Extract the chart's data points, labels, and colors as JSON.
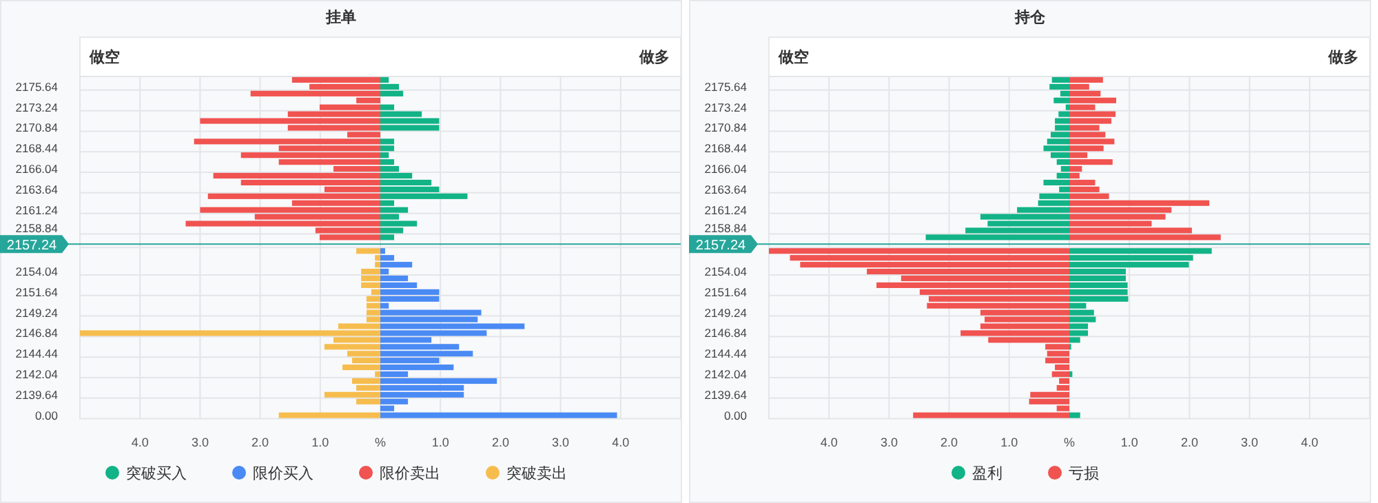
{
  "chart_data": [
    {
      "type": "bar",
      "orientation": "horizontal",
      "stacked": true,
      "title": "挂单",
      "annotations": [
        "做空",
        "做多"
      ],
      "categories": [
        null,
        "2175.64",
        null,
        null,
        "2173.24",
        null,
        null,
        "2170.84",
        null,
        null,
        "2168.44",
        null,
        null,
        "2166.04",
        null,
        null,
        "2163.64",
        null,
        null,
        "2161.24",
        null,
        null,
        "2158.84",
        null,
        "2157.24",
        null,
        null,
        null,
        "2154.04",
        null,
        null,
        "2151.64",
        null,
        null,
        "2149.24",
        null,
        null,
        "2146.84",
        null,
        null,
        "2144.44",
        null,
        null,
        "2142.04",
        null,
        null,
        "2139.64",
        null,
        null,
        "0.00"
      ],
      "series": [
        {
          "name": "突破买入",
          "color": "#12b386",
          "values": [
            0.14,
            0.31,
            0.38,
            null,
            0.23,
            0.69,
            0.98,
            0.98,
            null,
            0.23,
            0.23,
            0.14,
            0.23,
            0.31,
            0.53,
            0.85,
            0.98,
            1.45,
            0.23,
            0.46,
            0.31,
            0.61,
            0.38,
            0.23,
            null,
            null,
            null,
            null,
            null,
            null,
            null,
            null,
            null,
            null,
            null,
            null,
            null,
            null,
            null,
            null,
            null,
            null,
            null,
            null,
            null,
            null,
            null,
            null,
            null,
            null
          ]
        },
        {
          "name": "限价买入",
          "color": "#4a8af4",
          "values": [
            null,
            null,
            null,
            null,
            null,
            null,
            null,
            null,
            null,
            null,
            null,
            null,
            null,
            null,
            null,
            null,
            null,
            null,
            null,
            null,
            null,
            null,
            null,
            null,
            null,
            0.08,
            0.23,
            0.53,
            0.14,
            0.46,
            0.61,
            0.98,
            0.98,
            0.14,
            1.68,
            1.62,
            2.4,
            1.77,
            0.85,
            1.31,
            1.54,
            0.98,
            1.22,
            0.46,
            1.94,
            1.39,
            1.39,
            0.46,
            0.23,
            3.94
          ]
        },
        {
          "name": "限价卖出",
          "color": "#f05350",
          "values": [
            -1.47,
            -1.18,
            -2.16,
            -0.4,
            -1.01,
            -1.54,
            -3.0,
            -1.54,
            -0.55,
            -3.1,
            -1.69,
            -2.32,
            -1.69,
            -0.78,
            -2.78,
            -2.32,
            -0.93,
            -2.87,
            -1.47,
            -3.0,
            -2.09,
            -3.24,
            -1.08,
            -1.01,
            null,
            null,
            null,
            null,
            null,
            null,
            null,
            null,
            null,
            null,
            null,
            null,
            null,
            null,
            null,
            null,
            null,
            null,
            null,
            null,
            null,
            null,
            null,
            null,
            null,
            null
          ]
        },
        {
          "name": "突破卖出",
          "color": "#f6bd4e",
          "values": [
            null,
            null,
            null,
            null,
            null,
            null,
            null,
            null,
            null,
            null,
            null,
            null,
            null,
            null,
            null,
            null,
            null,
            null,
            null,
            null,
            null,
            null,
            null,
            null,
            null,
            -0.4,
            -0.09,
            -0.09,
            -0.32,
            -0.32,
            -0.32,
            -0.15,
            -0.23,
            -0.23,
            -0.23,
            -0.23,
            -0.7,
            -5.0,
            -0.78,
            -0.93,
            -0.55,
            -0.47,
            -0.63,
            -0.09,
            -0.47,
            -0.4,
            -0.93,
            -0.4,
            null,
            -1.69
          ]
        }
      ],
      "xlim": [
        -5,
        5
      ],
      "xticks": [
        {
          "value": -4,
          "label": "4.0"
        },
        {
          "value": -3,
          "label": "3.0"
        },
        {
          "value": -2,
          "label": "2.0"
        },
        {
          "value": -1,
          "label": "1.0"
        },
        {
          "value": 0,
          "label": "%"
        },
        {
          "value": 1,
          "label": "1.0"
        },
        {
          "value": 2,
          "label": "2.0"
        },
        {
          "value": 3,
          "label": "3.0"
        },
        {
          "value": 4,
          "label": "4.0"
        }
      ],
      "ref_lines": [
        {
          "axis": "y",
          "value": "2157.24",
          "color": "#26a69a"
        }
      ],
      "grid": true,
      "legend": "bottom"
    },
    {
      "type": "bar",
      "orientation": "horizontal",
      "stacked": true,
      "title": "持仓",
      "annotations": [
        "做空",
        "做多"
      ],
      "categories": [
        null,
        "2175.64",
        null,
        null,
        "2173.24",
        null,
        null,
        "2170.84",
        null,
        null,
        "2168.44",
        null,
        null,
        "2166.04",
        null,
        null,
        "2163.64",
        null,
        null,
        "2161.24",
        null,
        null,
        "2158.84",
        null,
        "2157.24",
        null,
        null,
        null,
        "2154.04",
        null,
        null,
        "2151.64",
        null,
        null,
        "2149.24",
        null,
        null,
        "2146.84",
        null,
        null,
        "2144.44",
        null,
        null,
        "2142.04",
        null,
        null,
        "2139.64",
        null,
        null,
        "0.00"
      ],
      "series": [
        {
          "name": "盈利",
          "color": "#12b386",
          "values": [
            -0.29,
            -0.33,
            -0.15,
            -0.26,
            -0.06,
            -0.18,
            -0.24,
            -0.24,
            -0.31,
            -0.37,
            -0.43,
            -0.31,
            -0.21,
            -0.14,
            -0.21,
            -0.43,
            -0.17,
            -0.5,
            -0.52,
            -0.87,
            -1.48,
            -1.36,
            -1.73,
            -2.39,
            null,
            2.37,
            2.06,
            1.99,
            0.94,
            0.94,
            0.97,
            0.97,
            0.98,
            0.28,
            0.41,
            0.44,
            0.31,
            0.31,
            0.18,
            0.03,
            null,
            null,
            null,
            0.05,
            null,
            null,
            null,
            null,
            null,
            0.18
          ]
        },
        {
          "name": "亏损",
          "color": "#f05350",
          "values": [
            0.56,
            0.33,
            0.52,
            0.78,
            0.43,
            0.77,
            0.7,
            0.5,
            0.6,
            0.75,
            0.57,
            0.3,
            0.72,
            0.21,
            0.17,
            0.43,
            0.5,
            0.66,
            2.33,
            1.7,
            1.6,
            1.37,
            2.04,
            2.52,
            null,
            -5.0,
            -4.65,
            -4.48,
            -3.37,
            -2.8,
            -3.21,
            -2.49,
            -2.34,
            -2.37,
            -1.48,
            -1.41,
            -1.48,
            -1.81,
            -1.35,
            -0.4,
            -0.37,
            -0.4,
            -0.24,
            -0.29,
            -0.17,
            -0.21,
            -0.65,
            -0.67,
            -0.21,
            -2.6
          ]
        }
      ],
      "xlim": [
        -5,
        5
      ],
      "xticks": [
        {
          "value": -4,
          "label": "4.0"
        },
        {
          "value": -3,
          "label": "3.0"
        },
        {
          "value": -2,
          "label": "2.0"
        },
        {
          "value": -1,
          "label": "1.0"
        },
        {
          "value": 0,
          "label": "%"
        },
        {
          "value": 1,
          "label": "1.0"
        },
        {
          "value": 2,
          "label": "2.0"
        },
        {
          "value": 3,
          "label": "3.0"
        },
        {
          "value": 4,
          "label": "4.0"
        }
      ],
      "ref_lines": [
        {
          "axis": "y",
          "value": "2157.24",
          "color": "#26a69a"
        }
      ],
      "grid": true,
      "legend": "bottom"
    }
  ]
}
